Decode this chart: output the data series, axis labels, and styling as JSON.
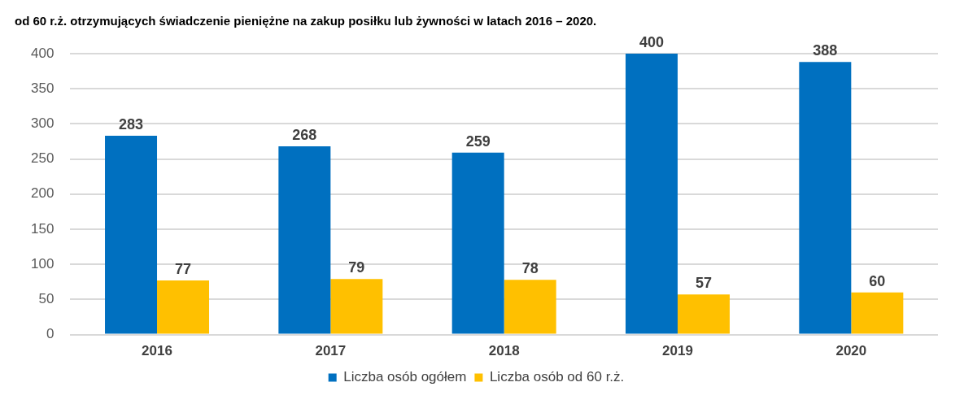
{
  "chart_data": {
    "type": "bar",
    "title": "od 60 r.ż. otrzymujących świadczenie pieniężne na zakup posiłku lub żywności w latach 2016 – 2020.",
    "categories": [
      "2016",
      "2017",
      "2018",
      "2019",
      "2020"
    ],
    "series": [
      {
        "name": "Liczba osób ogółem",
        "color": "#0070c0",
        "values": [
          283,
          268,
          259,
          400,
          388
        ]
      },
      {
        "name": "Liczba osób od 60 r.ż.",
        "color": "#ffc000",
        "values": [
          77,
          79,
          78,
          57,
          60
        ]
      }
    ],
    "ylim": [
      0,
      400
    ],
    "yticks": [
      0,
      50,
      100,
      150,
      200,
      250,
      300,
      350,
      400
    ],
    "grid": "y",
    "legend": "bottom",
    "data_labels": true
  }
}
